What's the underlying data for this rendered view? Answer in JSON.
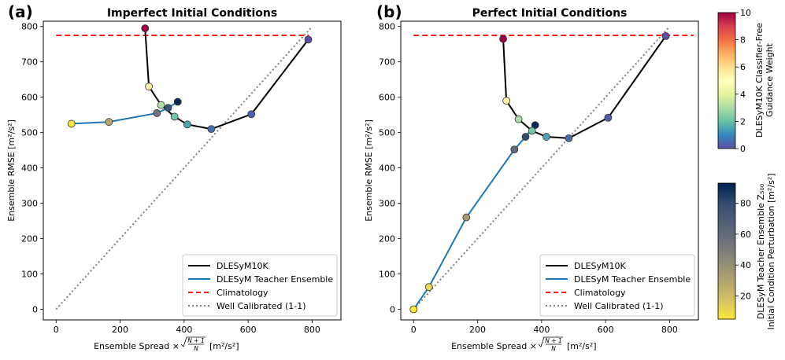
{
  "chart_data": [
    {
      "type": "line",
      "panel_label": "(a)",
      "title": "Imperfect Initial Conditions",
      "xlabel": "Ensemble Spread × √((N+1)/N) [m²/s²]",
      "xlabel_parts": {
        "main": "Ensemble Spread ×",
        "num": "N + 1",
        "den": "N",
        "units": "[m²/s²]"
      },
      "ylabel": "Ensemble RMSE [m²/s²]",
      "xlim": [
        -40,
        890
      ],
      "ylim": [
        -30,
        815
      ],
      "xticks": [
        0,
        200,
        400,
        600,
        800
      ],
      "yticks": [
        0,
        100,
        200,
        300,
        400,
        500,
        600,
        700,
        800
      ],
      "climatology": {
        "y": 775,
        "x": [
          0,
          790
        ]
      },
      "calibrated": {
        "x": [
          0,
          800
        ],
        "y": [
          0,
          800
        ]
      },
      "series": [
        {
          "name": "DLESyM10K",
          "color": "#000000",
          "points": [
            {
              "x": 278,
              "y": 795,
              "cfg": 10
            },
            {
              "x": 290,
              "y": 630,
              "cfg": 5.5
            },
            {
              "x": 328,
              "y": 578,
              "cfg": 3
            },
            {
              "x": 370,
              "y": 545,
              "cfg": 2.2
            },
            {
              "x": 410,
              "y": 523,
              "cfg": 1.5
            },
            {
              "x": 485,
              "y": 510,
              "cfg": 0.6
            },
            {
              "x": 610,
              "y": 552,
              "cfg": 0.3
            },
            {
              "x": 788,
              "y": 763,
              "cfg": 0
            }
          ]
        },
        {
          "name": "DLESyM Teacher Ensemble",
          "color": "#1f77b4",
          "points": [
            {
              "x": 48,
              "y": 525,
              "pert": 5
            },
            {
              "x": 165,
              "y": 530,
              "pert": 28
            },
            {
              "x": 315,
              "y": 555,
              "pert": 55
            },
            {
              "x": 350,
              "y": 570,
              "pert": 75
            },
            {
              "x": 380,
              "y": 587,
              "pert": 90
            }
          ]
        }
      ],
      "legend": [
        "DLESyM10K",
        "DLESyM Teacher Ensemble",
        "Climatology",
        "Well Calibrated (1-1)"
      ]
    },
    {
      "type": "line",
      "panel_label": "(b)",
      "title": "Perfect Initial Conditions",
      "xlabel": "Ensemble Spread × √((N+1)/N) [m²/s²]",
      "xlabel_parts": {
        "main": "Ensemble Spread ×",
        "num": "N + 1",
        "den": "N",
        "units": "[m²/s²]"
      },
      "ylabel": "Ensemble RMSE [m²/s²]",
      "xlim": [
        -40,
        890
      ],
      "ylim": [
        -30,
        815
      ],
      "xticks": [
        0,
        200,
        400,
        600,
        800
      ],
      "yticks": [
        0,
        100,
        200,
        300,
        400,
        500,
        600,
        700,
        800
      ],
      "climatology": {
        "y": 775,
        "x": [
          0,
          875
        ]
      },
      "calibrated": {
        "x": [
          0,
          800
        ],
        "y": [
          0,
          800
        ]
      },
      "series": [
        {
          "name": "DLESyM10K",
          "color": "#000000",
          "points": [
            {
              "x": 280,
              "y": 765,
              "cfg": 10
            },
            {
              "x": 290,
              "y": 590,
              "cfg": 5.5
            },
            {
              "x": 328,
              "y": 538,
              "cfg": 3
            },
            {
              "x": 370,
              "y": 505,
              "cfg": 2.2
            },
            {
              "x": 415,
              "y": 488,
              "cfg": 1.5
            },
            {
              "x": 485,
              "y": 484,
              "cfg": 0.6
            },
            {
              "x": 608,
              "y": 542,
              "cfg": 0.3
            },
            {
              "x": 788,
              "y": 773,
              "cfg": 0
            }
          ]
        },
        {
          "name": "DLESyM Teacher Ensemble",
          "color": "#1f77b4",
          "points": [
            {
              "x": 0,
              "y": 0,
              "pert": 5
            },
            {
              "x": 48,
              "y": 63,
              "pert": 10
            },
            {
              "x": 165,
              "y": 260,
              "pert": 35
            },
            {
              "x": 315,
              "y": 452,
              "pert": 60
            },
            {
              "x": 350,
              "y": 488,
              "pert": 80
            },
            {
              "x": 380,
              "y": 521,
              "pert": 90
            }
          ]
        }
      ],
      "legend": [
        "DLESyM10K",
        "DLESyM Teacher Ensemble",
        "Climatology",
        "Well Calibrated (1-1)"
      ]
    }
  ],
  "colorbars": [
    {
      "label_lines": [
        "DLESyM10K Classifier-Free",
        "Guidance Weight"
      ],
      "ticks": [
        0,
        2,
        4,
        6,
        8,
        10
      ],
      "range": [
        0,
        10
      ],
      "colormap": [
        "#5e4fa2",
        "#3288bd",
        "#66c2a5",
        "#abdda4",
        "#e6f598",
        "#ffffbf",
        "#fee08b",
        "#fdae61",
        "#f46d43",
        "#d53e4f",
        "#9e0142"
      ]
    },
    {
      "label_lines": [
        "DLESyM Teacher Ensemble Z₅₀₀",
        "Initial Condition Perturbation [m²/s²]"
      ],
      "ticks": [
        20,
        40,
        60,
        80
      ],
      "range": [
        5,
        93
      ],
      "colormap": [
        "#fde737",
        "#d3c164",
        "#b0a36e",
        "#8c8a78",
        "#6f717a",
        "#525e76",
        "#314b6f",
        "#00204d"
      ]
    }
  ]
}
